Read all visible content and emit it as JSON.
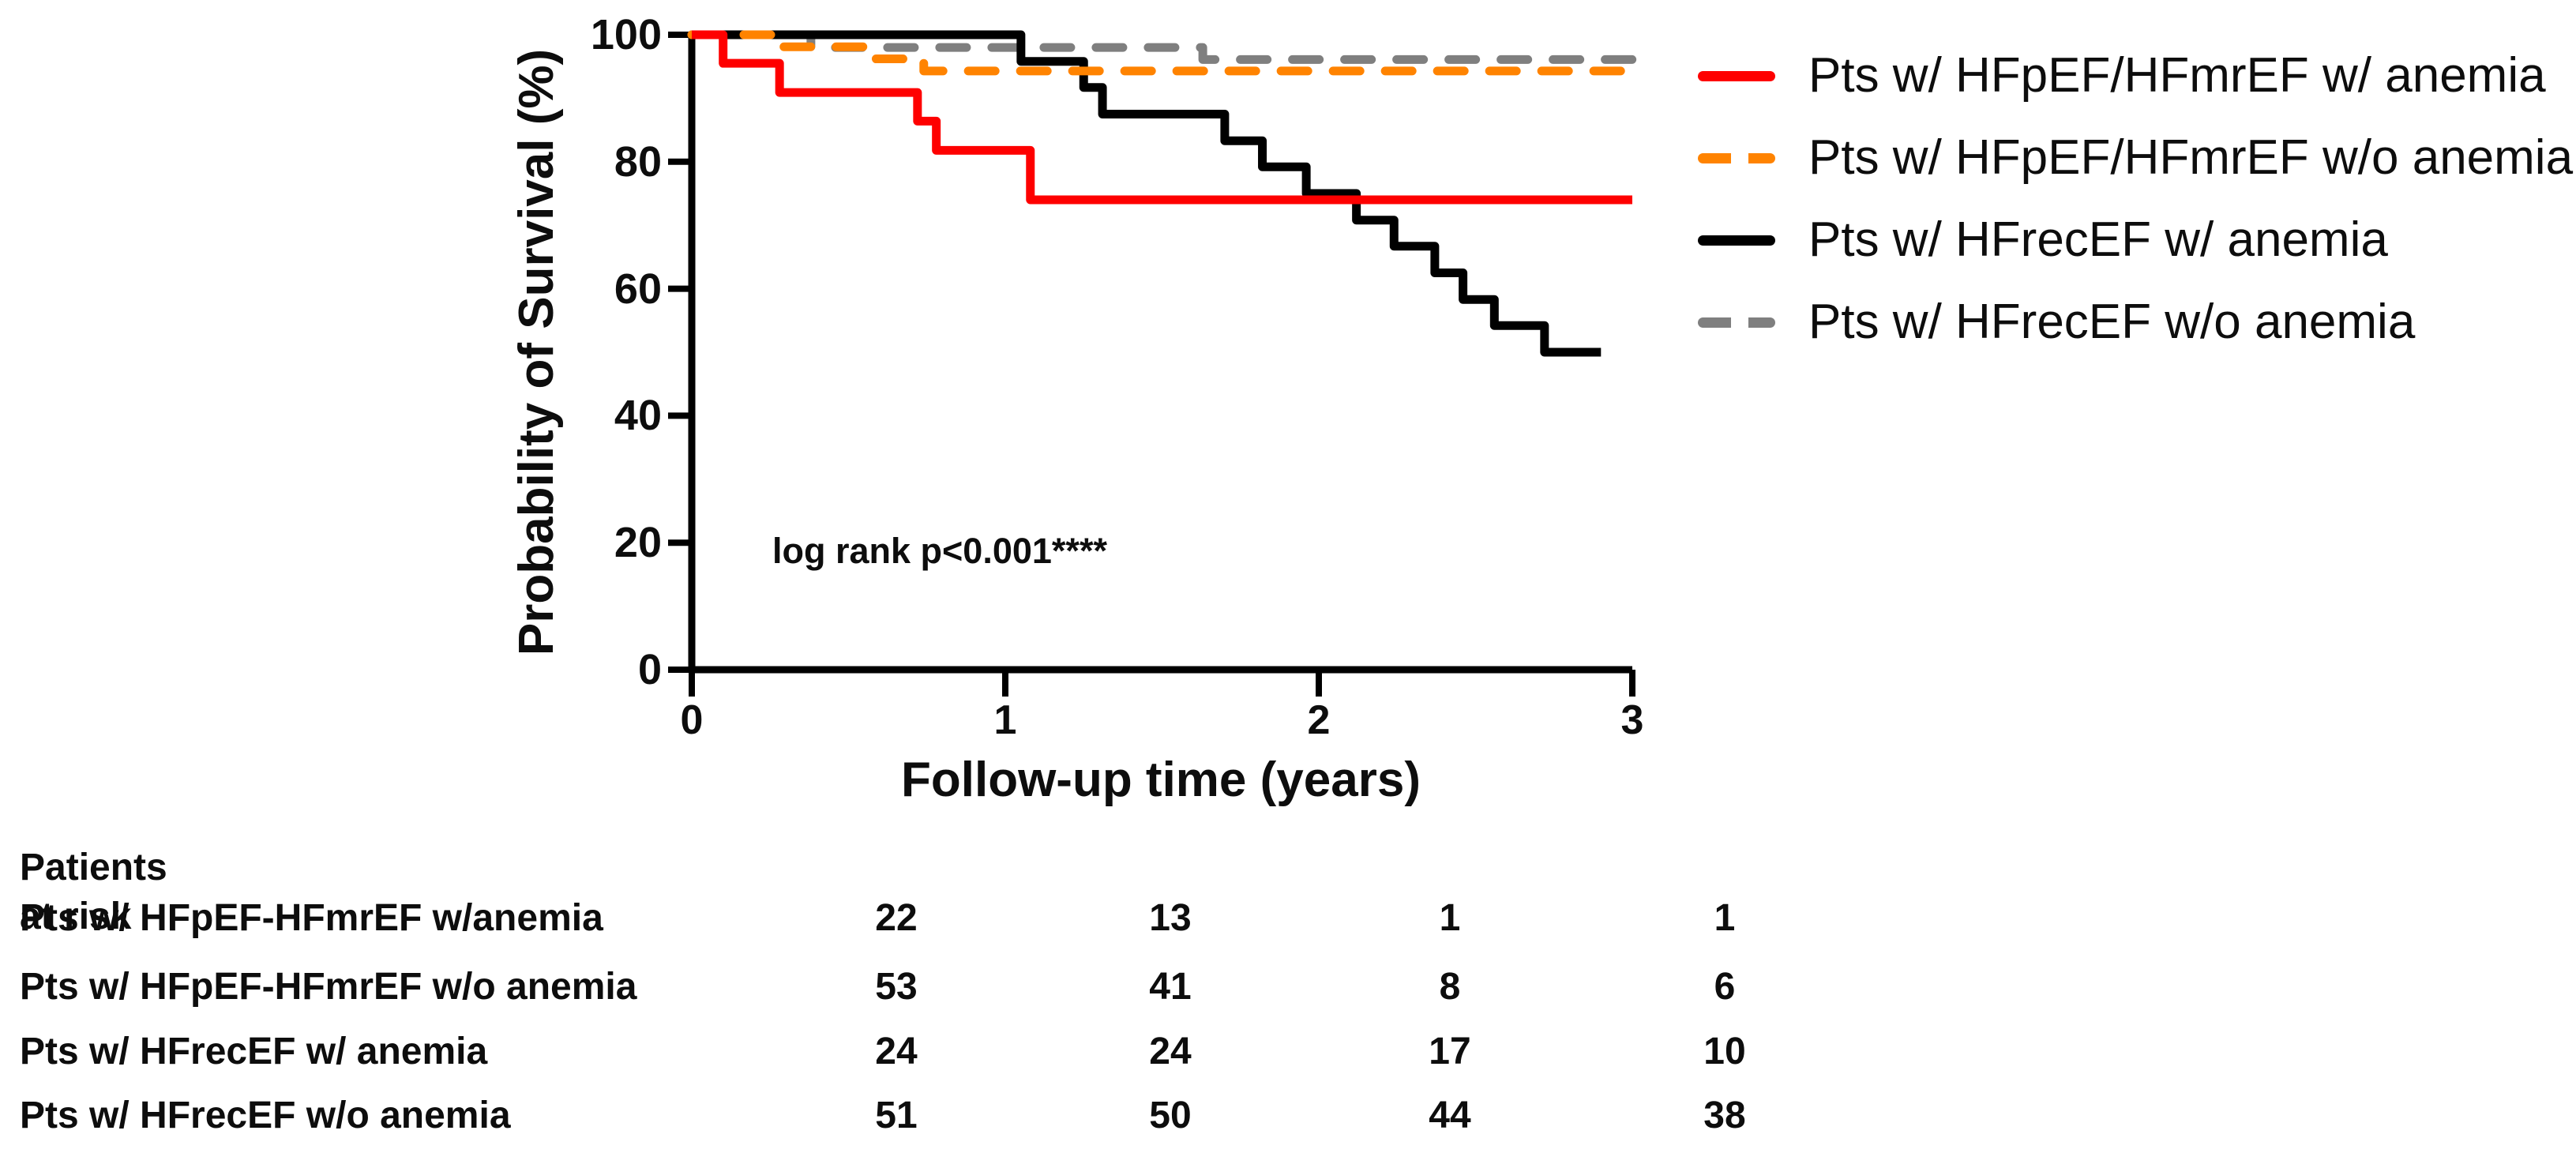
{
  "chart_data": {
    "type": "line",
    "subtype": "kaplan-meier-step",
    "title": "",
    "xlabel": "Follow-up time (years)",
    "ylabel": "Probability of Survival (%)",
    "xlim": [
      0,
      3
    ],
    "ylim": [
      0,
      100
    ],
    "x_ticks": [
      0,
      1,
      2,
      3
    ],
    "y_ticks": [
      100,
      80,
      60,
      40,
      20,
      0
    ],
    "grid": false,
    "legend_position": "right",
    "annotation": "log rank p<0.001****",
    "series": [
      {
        "name": "Pts w/ HFpEF/HFmrEF w/ anemia",
        "color": "#fe0000",
        "dash": "solid",
        "steps": [
          [
            0,
            100
          ],
          [
            0.1,
            95.5
          ],
          [
            0.28,
            90.9
          ],
          [
            0.72,
            86.4
          ],
          [
            0.78,
            81.8
          ],
          [
            1.08,
            74.0
          ],
          [
            3.0,
            74.0
          ]
        ]
      },
      {
        "name": "Pts w/ HFpEF/HFmrEF w/o anemia",
        "color": "#ff8300",
        "dash": "dashed",
        "steps": [
          [
            0,
            100
          ],
          [
            0.26,
            98.1
          ],
          [
            0.56,
            96.2
          ],
          [
            0.74,
            94.3
          ],
          [
            3.0,
            94.3
          ]
        ]
      },
      {
        "name": "Pts w/ HFrecEF w/ anemia",
        "color": "#000000",
        "dash": "solid",
        "steps": [
          [
            0,
            100
          ],
          [
            1.05,
            95.8
          ],
          [
            1.25,
            91.7
          ],
          [
            1.31,
            87.5
          ],
          [
            1.7,
            83.3
          ],
          [
            1.82,
            79.2
          ],
          [
            1.96,
            75.0
          ],
          [
            2.12,
            70.8
          ],
          [
            2.24,
            66.7
          ],
          [
            2.37,
            62.5
          ],
          [
            2.46,
            58.3
          ],
          [
            2.56,
            54.2
          ],
          [
            2.72,
            50.0
          ],
          [
            2.9,
            50.0
          ]
        ]
      },
      {
        "name": "Pts w/ HFrecEF w/o anemia",
        "color": "#7f7f7f",
        "dash": "dashed",
        "steps": [
          [
            0,
            100
          ],
          [
            0.38,
            98.0
          ],
          [
            1.63,
            96.1
          ],
          [
            3.0,
            96.1
          ]
        ]
      }
    ]
  },
  "risk_table": {
    "title": "Patients at risk",
    "rows": [
      {
        "label": "Pts w/ HFpEF-HFmrEF w/anemia",
        "counts": [
          "22",
          "13",
          "1",
          "1"
        ]
      },
      {
        "label": "Pts w/ HFpEF-HFmrEF w/o anemia",
        "counts": [
          "53",
          "41",
          "8",
          "6"
        ]
      },
      {
        "label": "Pts w/ HFrecEF w/ anemia",
        "counts": [
          "24",
          "24",
          "17",
          "10"
        ]
      },
      {
        "label": "Pts w/ HFrecEF w/o anemia",
        "counts": [
          "51",
          "50",
          "44",
          "38"
        ]
      }
    ]
  }
}
